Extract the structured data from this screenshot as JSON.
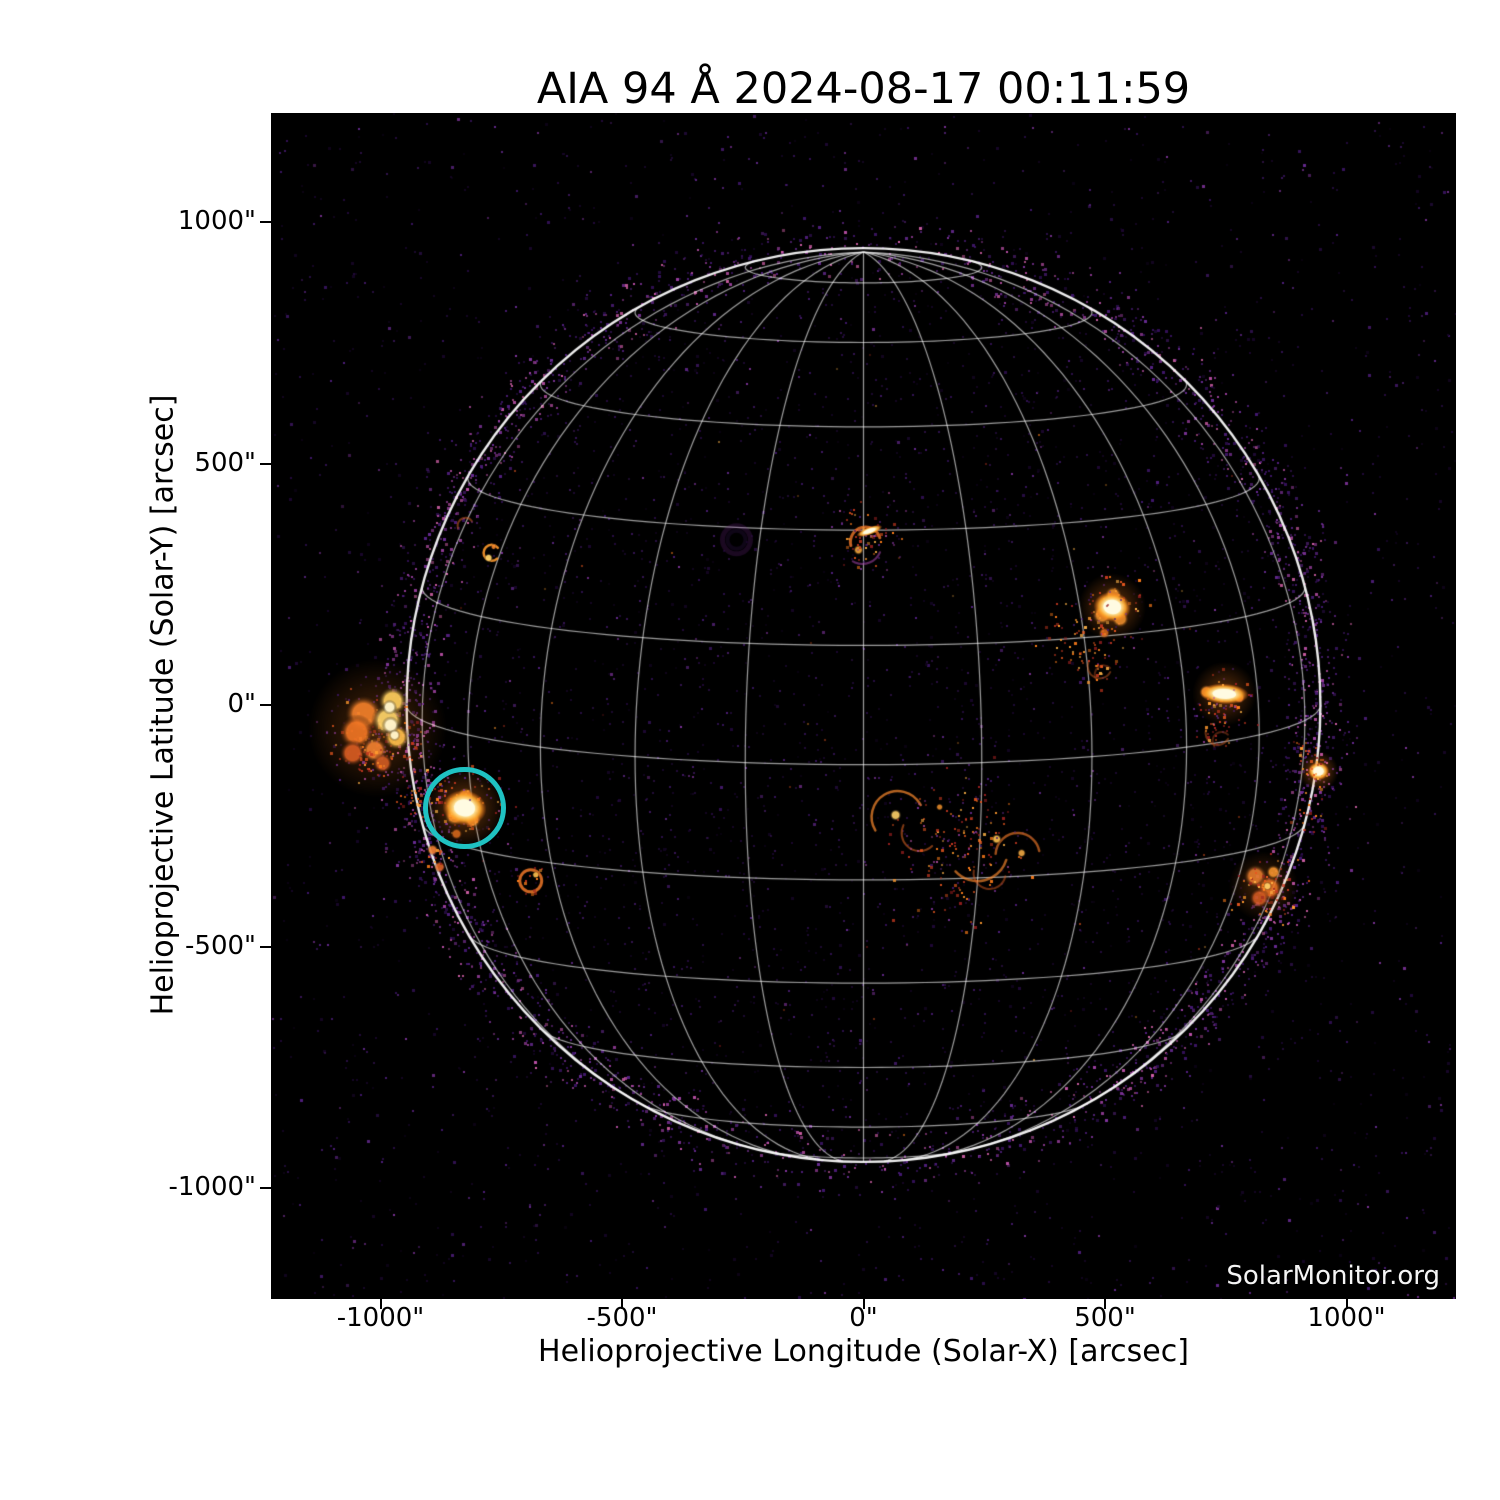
{
  "chart": {
    "title": "AIA 94 Å 2024-08-17 00:11:59",
    "xlabel": "Helioprojective Longitude (Solar-X) [arcsec]",
    "ylabel": "Helioprojective Latitude (Solar-Y) [arcsec]",
    "watermark": "SolarMonitor.org"
  },
  "chart_data": {
    "type": "heatmap",
    "title": "AIA 94 Å 2024-08-17 00:11:59",
    "instrument": "AIA",
    "wavelength": "94 Å",
    "datetime": "2024-08-17 00:11:59",
    "xlabel": "Helioprojective Longitude (Solar-X) [arcsec]",
    "ylabel": "Helioprojective Latitude (Solar-Y) [arcsec]",
    "xlim": [
      -1228,
      1226
    ],
    "ylim": [
      -1230,
      1226
    ],
    "x_ticks": {
      "values": [
        -1000,
        -500,
        0,
        500,
        1000
      ],
      "labels": [
        "-1000\"",
        "-500\"",
        "0\"",
        "500\"",
        "1000\""
      ]
    },
    "y_ticks": {
      "values": [
        1000,
        500,
        0,
        -500,
        -1000
      ],
      "labels": [
        "1000\"",
        "500\"",
        "0\"",
        "-500\"",
        "-1000\""
      ]
    },
    "grid_on": true,
    "solar_disk": {
      "center_arcsec": [
        0,
        0
      ],
      "radius_arcsec": 946,
      "grid_spacing_deg": 15,
      "b0_tilt_deg": 7.5,
      "limb_color": "#ffffff",
      "grid_color": "rgba(255,255,255,0.62)"
    },
    "annotation_circle": {
      "solar_x": -826,
      "solar_y": -213,
      "radius_arcsec": 75,
      "color": "#1fc2c2",
      "stroke_px": 5
    },
    "colors": {
      "background": "#000000",
      "figure_background": "#ffffff",
      "noise_palette": [
        "#160527",
        "#24093f",
        "#331058",
        "#41176e",
        "#531f82",
        "#672a92",
        "#7f339c",
        "#9b3fa0",
        "#b84fa5",
        "#d260a8"
      ],
      "flare_palette": [
        "#ffb347",
        "#ff9a2e",
        "#ff7d1a",
        "#e8571f",
        "#c2371f",
        "#9c2020"
      ],
      "core_color": "#fffbe2",
      "glow_color": "#ff821e"
    },
    "active_regions": [
      {
        "name": "east-limb-complex",
        "x": -1006,
        "y": -48,
        "size": 44,
        "style": "limb_bright"
      },
      {
        "name": "east-limb-trail",
        "x": -940,
        "y": -195,
        "size": 12,
        "style": "speck_cluster",
        "n": 20
      },
      {
        "name": "circled-region",
        "x": -826,
        "y": -213,
        "size": 24,
        "style": "bright",
        "core": 13
      },
      {
        "name": "circled-south-specks",
        "x": -888,
        "y": -176,
        "size": 16,
        "style": "speck_cluster",
        "n": 22
      },
      {
        "name": "small-ring-southeast",
        "x": -689,
        "y": -364,
        "size": 11,
        "style": "ring"
      },
      {
        "name": "east-limb-dots",
        "x": -892,
        "y": -300,
        "size": 9,
        "style": "pair"
      },
      {
        "name": "east-hook",
        "x": -770,
        "y": 315,
        "size": 8,
        "style": "hook"
      },
      {
        "name": "east-faint-arc",
        "x": -824,
        "y": 371,
        "size": 8,
        "style": "faint_arc"
      },
      {
        "name": "disk-center-north",
        "x": 4,
        "y": 350,
        "size": 20,
        "style": "arc_bright"
      },
      {
        "name": "faint-purple-ring",
        "x": -263,
        "y": 342,
        "size": 14,
        "style": "purple_ring"
      },
      {
        "name": "west-region-1",
        "x": 515,
        "y": 203,
        "size": 20,
        "style": "bright",
        "core": 11
      },
      {
        "name": "west-region-1-trail",
        "x": 447,
        "y": 135,
        "size": 30,
        "style": "speck_cluster",
        "n": 60
      },
      {
        "name": "west-region-1-loops",
        "x": 489,
        "y": 80,
        "size": 22,
        "style": "faint_loops_small"
      },
      {
        "name": "west-region-2",
        "x": 747,
        "y": 23,
        "size": 17,
        "style": "bright_wide"
      },
      {
        "name": "west-region-2-loops",
        "x": 733,
        "y": -58,
        "size": 14,
        "style": "faint_loops_small"
      },
      {
        "name": "west-limb-spot",
        "x": 942,
        "y": -137,
        "size": 9,
        "style": "small_bright"
      },
      {
        "name": "west-limb-specks-1",
        "x": 913,
        "y": -85,
        "size": 12,
        "style": "speck_cluster",
        "n": 14
      },
      {
        "name": "west-limb-specks-2",
        "x": 928,
        "y": -228,
        "size": 14,
        "style": "speck_cluster",
        "n": 16
      },
      {
        "name": "southwest-limb-cluster",
        "x": 828,
        "y": -375,
        "size": 22,
        "style": "cluster"
      },
      {
        "name": "south-center-loops",
        "x": 199,
        "y": -290,
        "size": 58,
        "style": "loops"
      }
    ]
  }
}
